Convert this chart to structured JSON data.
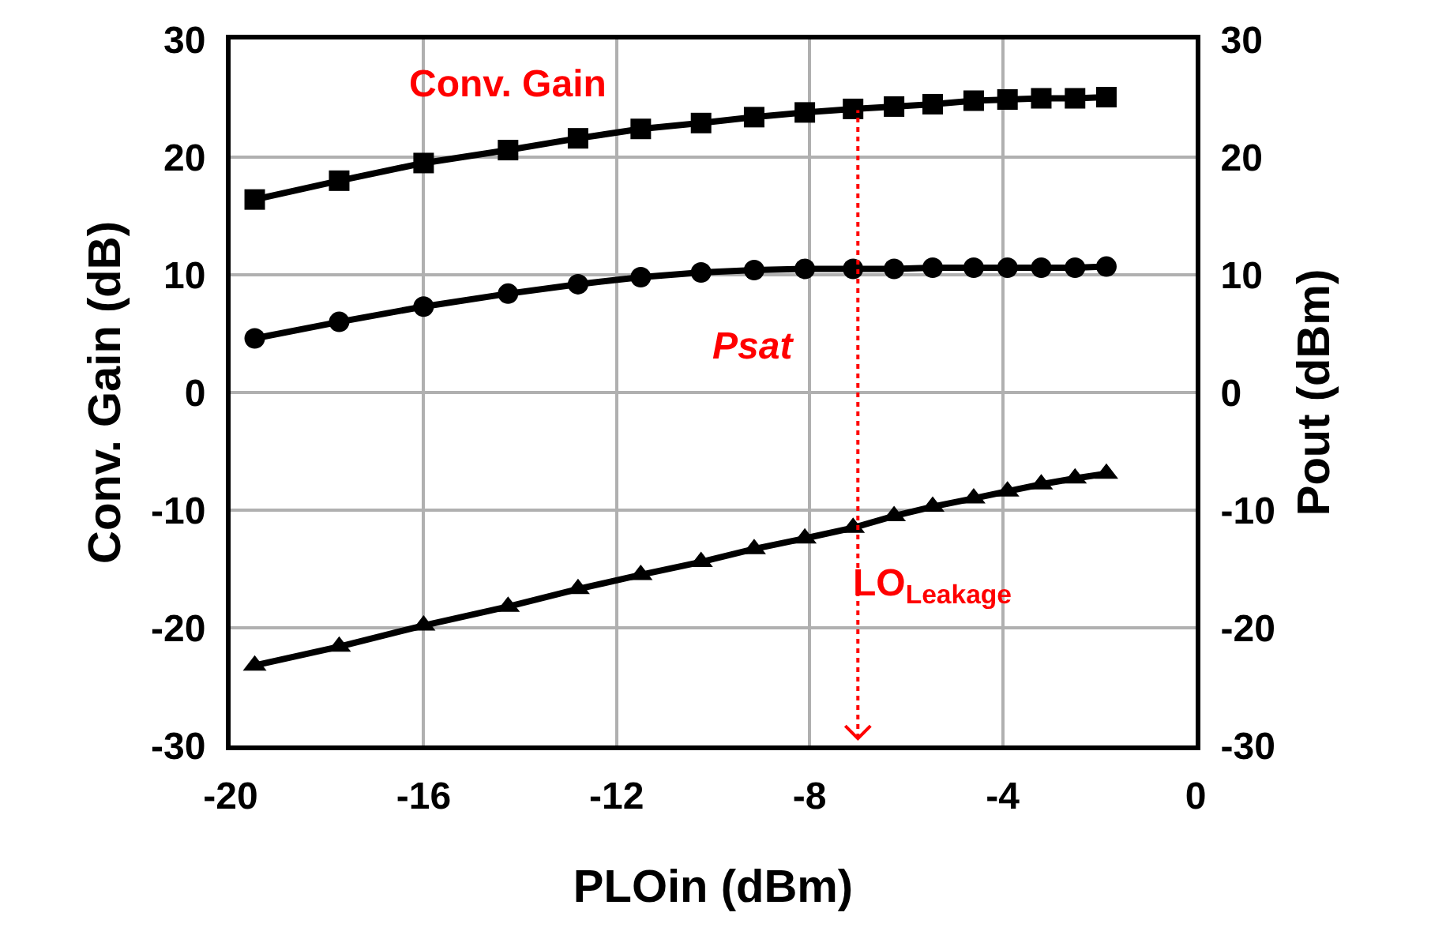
{
  "chart_data": {
    "type": "line",
    "xlabel": "PLOin (dBm)",
    "ylabel": "Conv. Gain (dB)",
    "y2label": "Pout (dBm)",
    "x": [
      -19.5,
      -17.75,
      -16,
      -14.25,
      -12.8,
      -11.5,
      -10.25,
      -9.15,
      -8.1,
      -7.1,
      -6.25,
      -5.45,
      -4.6,
      -3.9,
      -3.2,
      -2.5,
      -1.85
    ],
    "series": [
      {
        "name": "Conv. Gain",
        "color": "#000000",
        "marker": "square",
        "values": [
          16.4,
          18.0,
          19.5,
          20.6,
          21.6,
          22.4,
          22.9,
          23.4,
          23.8,
          24.1,
          24.3,
          24.5,
          24.8,
          24.9,
          25.0,
          25.0,
          25.1
        ]
      },
      {
        "name": "Psat",
        "color": "#000000",
        "marker": "circle",
        "axis": "y2",
        "values": [
          4.6,
          6.0,
          7.3,
          8.4,
          9.2,
          9.8,
          10.2,
          10.4,
          10.5,
          10.5,
          10.5,
          10.6,
          10.6,
          10.6,
          10.6,
          10.6,
          10.7
        ]
      },
      {
        "name": "LO$_{Leakage}$",
        "color": "#000000",
        "marker": "triangle",
        "values": [
          -23.2,
          -21.6,
          -19.8,
          -18.2,
          -16.7,
          -15.5,
          -14.4,
          -13.3,
          -12.4,
          -11.5,
          -10.5,
          -9.7,
          -9.0,
          -8.4,
          -7.8,
          -7.3,
          -6.9
        ]
      }
    ],
    "xlim": [
      -20,
      0
    ],
    "xticks": [
      -20,
      -16,
      -12,
      -8,
      -4,
      0
    ],
    "ylim": [
      -30,
      30
    ],
    "yticks": [
      -30,
      -20,
      -10,
      0,
      10,
      20,
      30
    ],
    "y2lim": [
      -30,
      30
    ],
    "y2ticks": [
      -30,
      -20,
      -10,
      0,
      10,
      20,
      30
    ],
    "grid": true,
    "line_style": "solid",
    "ref_lines": [
      {
        "axis": "x",
        "value": -7,
        "color": "#ff0000",
        "line_style": "dotted"
      }
    ]
  }
}
